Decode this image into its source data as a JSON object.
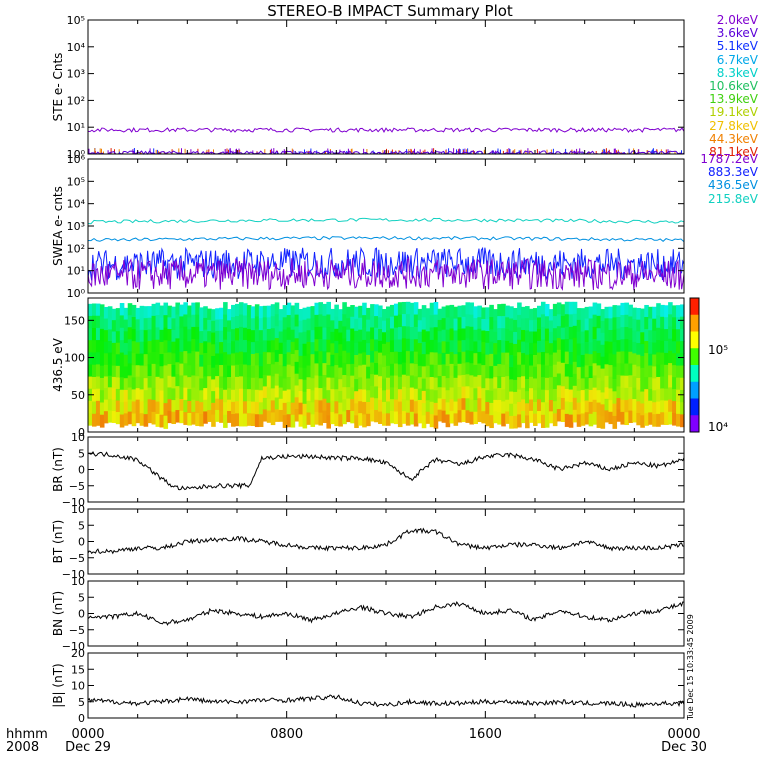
{
  "title": "STEREO-B IMPACT Summary Plot",
  "time_axis": {
    "unit_label": "hhmm",
    "year_label": "2008",
    "ticks": [
      {
        "value": "0000",
        "date": "Dec 29"
      },
      {
        "value": "0800",
        "date": ""
      },
      {
        "value": "1600",
        "date": ""
      },
      {
        "value": "0000",
        "date": "Dec 30"
      }
    ]
  },
  "ste_legend": [
    {
      "label": "2.0keV",
      "color": "#8000d0"
    },
    {
      "label": "3.6keV",
      "color": "#5a00d8"
    },
    {
      "label": "5.1keV",
      "color": "#1030ff"
    },
    {
      "label": "6.7keV",
      "color": "#00a8e8"
    },
    {
      "label": "8.3keV",
      "color": "#00d0c8"
    },
    {
      "label": "10.6keV",
      "color": "#20c060"
    },
    {
      "label": "13.9keV",
      "color": "#40d010"
    },
    {
      "label": "19.1keV",
      "color": "#b0d000"
    },
    {
      "label": "27.8keV",
      "color": "#f0c000"
    },
    {
      "label": "44.3keV",
      "color": "#f08000"
    },
    {
      "label": "81.1keV",
      "color": "#e02000"
    }
  ],
  "swea_legend": [
    {
      "label": "1787.2eV",
      "color": "#8000d0"
    },
    {
      "label": "883.3eV",
      "color": "#1020ff"
    },
    {
      "label": "436.5eV",
      "color": "#0090e0"
    },
    {
      "label": "215.8eV",
      "color": "#10d0c0"
    }
  ],
  "colorbar": {
    "tick_high": "10⁵",
    "tick_low": "10⁴"
  },
  "chart_data": [
    {
      "type": "line",
      "panel": "STE",
      "ylabel": "STE e- Cnts",
      "yscale": "log",
      "ylim": [
        1,
        100000
      ],
      "yticks": [
        "10⁰",
        "10¹",
        "10²",
        "10³",
        "10⁴",
        "10⁵"
      ],
      "series": [
        {
          "name": "2.0keV",
          "level": 8
        },
        {
          "name": "3.6keV",
          "level": 1.1
        }
      ]
    },
    {
      "type": "line",
      "panel": "SWEA",
      "ylabel": "SWEA e- cnts",
      "yscale": "log",
      "ylim": [
        1,
        1000000
      ],
      "yticks": [
        "10⁰",
        "10¹",
        "10²",
        "10³",
        "10⁴",
        "10⁵",
        "10⁶"
      ],
      "series": [
        {
          "name": "215.8eV",
          "level": 1500
        },
        {
          "name": "436.5eV",
          "level": 230
        },
        {
          "name": "883.3eV",
          "level": 18
        },
        {
          "name": "1787.2eV",
          "level": 6
        }
      ]
    },
    {
      "type": "heatmap",
      "panel": "PAD",
      "ylabel": "436.5 eV",
      "ylim": [
        0,
        180
      ],
      "yticks": [
        "0",
        "50",
        "100",
        "150"
      ]
    },
    {
      "type": "line",
      "panel": "BR",
      "ylabel": "BR (nT)",
      "ylim": [
        -10,
        10
      ],
      "yticks": [
        "−10",
        "−5",
        "0",
        "5",
        "10"
      ],
      "times_hours": [
        0,
        1,
        2,
        3,
        3.5,
        4,
        5,
        6,
        6.5,
        7,
        8,
        9,
        10,
        11,
        12,
        13,
        14,
        15,
        16,
        17,
        18,
        19,
        20,
        21,
        22,
        23,
        24
      ],
      "values": [
        5,
        4.5,
        3,
        -3,
        -5.5,
        -6,
        -5,
        -5,
        -5,
        3.5,
        4,
        4,
        3.5,
        3.5,
        2,
        -3,
        3,
        1.5,
        4,
        4.5,
        3,
        0,
        2,
        0,
        2,
        1,
        3
      ]
    },
    {
      "type": "line",
      "panel": "BT",
      "ylabel": "BT (nT)",
      "ylim": [
        -10,
        10
      ],
      "yticks": [
        "−10",
        "−5",
        "0",
        "5",
        "10"
      ],
      "times_hours": [
        0,
        1,
        2,
        3,
        4,
        5,
        6,
        7,
        8,
        9,
        10,
        11,
        12,
        13,
        14,
        15,
        16,
        17,
        18,
        19,
        20,
        21,
        22,
        23,
        24
      ],
      "values": [
        -3,
        -3,
        -2,
        -2,
        0,
        0.5,
        1,
        0,
        -1,
        -2,
        -2,
        -2,
        -1,
        3.5,
        3,
        -1,
        -2,
        -1,
        -1,
        -2,
        0,
        -2,
        -2,
        -2,
        -1
      ]
    },
    {
      "type": "line",
      "panel": "BN",
      "ylabel": "BN (nT)",
      "ylim": [
        -10,
        10
      ],
      "yticks": [
        "−10",
        "−5",
        "0",
        "5",
        "10"
      ],
      "times_hours": [
        0,
        1,
        2,
        3,
        4,
        5,
        6,
        7,
        8,
        9,
        10,
        11,
        12,
        13,
        14,
        15,
        16,
        17,
        18,
        19,
        20,
        21,
        22,
        23,
        24
      ],
      "values": [
        -1,
        -1,
        0,
        -3,
        -2,
        1,
        0,
        -1,
        0,
        -2,
        0,
        2,
        0,
        -1,
        2,
        3,
        0,
        1,
        -2,
        1,
        -1,
        -2,
        0,
        1,
        3
      ]
    },
    {
      "type": "line",
      "panel": "B",
      "ylabel": "|B| (nT)",
      "ylim": [
        0,
        20
      ],
      "yticks": [
        "0",
        "5",
        "10",
        "15",
        "20"
      ],
      "times_hours": [
        0,
        1,
        2,
        3,
        4,
        5,
        6,
        7,
        8,
        9,
        10,
        11,
        12,
        13,
        14,
        15,
        16,
        17,
        18,
        19,
        20,
        21,
        22,
        23,
        24
      ],
      "values": [
        5.5,
        5,
        4.5,
        5,
        6,
        5,
        5,
        5.5,
        5.5,
        6,
        6.5,
        4.5,
        4,
        5,
        4.5,
        4.5,
        5,
        5,
        4.5,
        5,
        4.5,
        4.5,
        4,
        4.5,
        4.5
      ]
    }
  ],
  "side_label": "Tue Dec 15 10:33:45 2009",
  "side_small": "sml"
}
